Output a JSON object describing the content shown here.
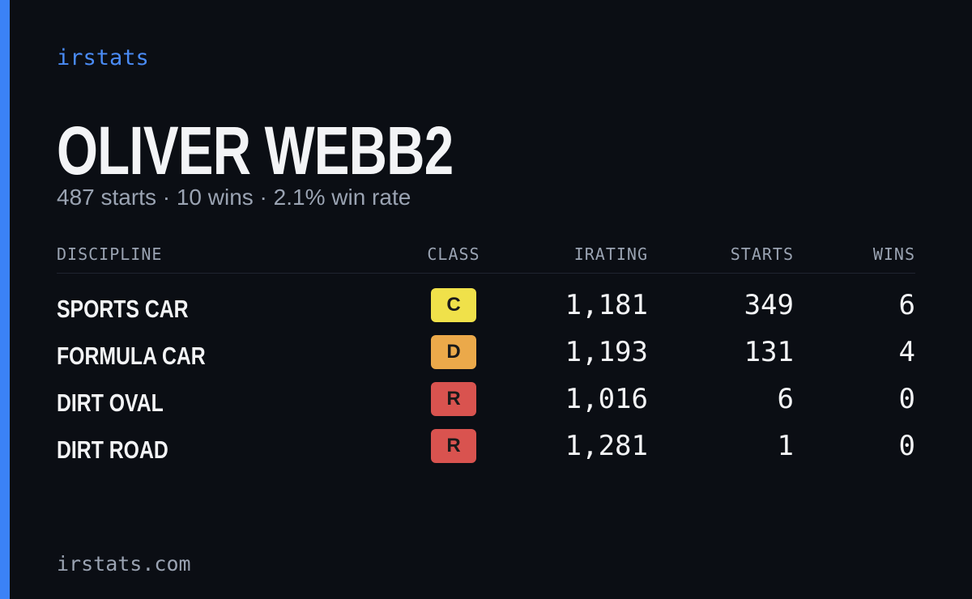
{
  "brand": "irstats",
  "driver": {
    "name": "OLIVER WEBB2",
    "summary": "487 starts · 10 wins · 2.1% win rate"
  },
  "table": {
    "headers": [
      "DISCIPLINE",
      "CLASS",
      "IRATING",
      "STARTS",
      "WINS"
    ],
    "rows": [
      [
        "SPORTS CAR",
        {
          "label": "C",
          "color": "#f0e14a"
        },
        "1,181",
        349,
        6
      ],
      [
        "FORMULA CAR",
        {
          "label": "D",
          "color": "#eba94a"
        },
        "1,193",
        131,
        4
      ],
      [
        "DIRT OVAL",
        {
          "label": "R",
          "color": "#d9534f"
        },
        "1,016",
        6,
        0
      ],
      [
        "DIRT ROAD",
        {
          "label": "R",
          "color": "#d9534f"
        },
        "1,281",
        1,
        0
      ]
    ]
  },
  "footer": "irstats.com"
}
